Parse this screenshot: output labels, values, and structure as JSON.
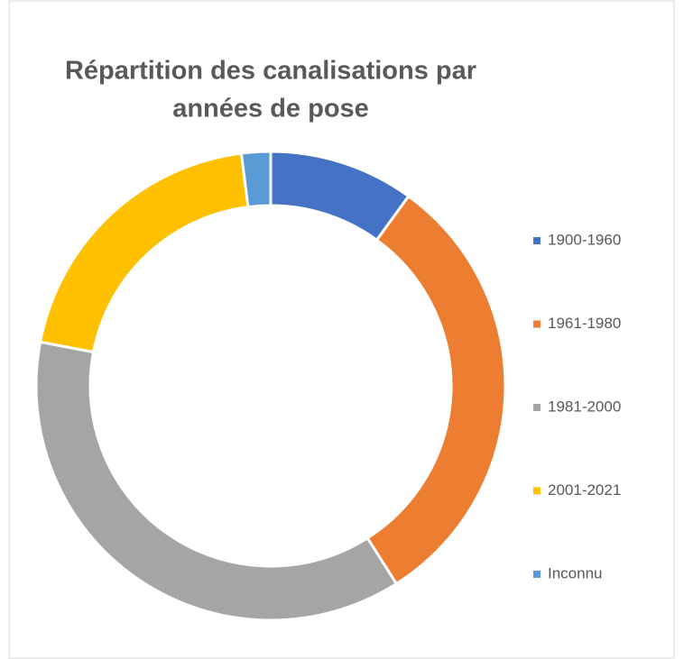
{
  "chart_data": {
    "type": "donut",
    "title": [
      "Répartition des canalisations par",
      "années de pose"
    ],
    "categories": [
      "1900-1960",
      "1961-1980",
      "1981-2000",
      "2001-2021",
      "Inconnu"
    ],
    "values": [
      10,
      31,
      37,
      20,
      2
    ],
    "colors": [
      "#4472c4",
      "#ed7d31",
      "#a5a5a5",
      "#ffc000",
      "#5b9bd5"
    ],
    "legend": "right"
  }
}
